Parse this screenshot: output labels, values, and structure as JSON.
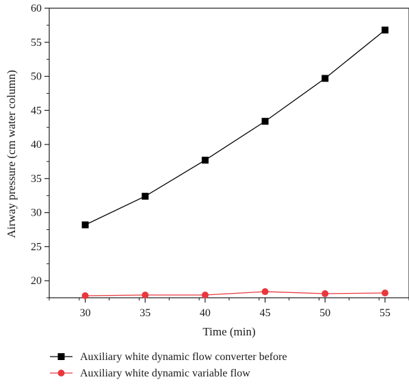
{
  "chart_data": {
    "type": "line",
    "title": "",
    "xlabel": "Time (min)",
    "ylabel": "Airway pressure (cm water column)",
    "x": [
      30,
      35,
      40,
      45,
      50,
      55
    ],
    "xlim": [
      27,
      57
    ],
    "ylim": [
      17.5,
      60
    ],
    "xticks": [
      30,
      35,
      40,
      45,
      50,
      55
    ],
    "yticks": [
      20,
      25,
      30,
      35,
      40,
      45,
      50,
      55,
      60
    ],
    "grid": false,
    "legend_position": "bottom",
    "series": [
      {
        "name": "Auxiliary white dynamic flow converter before",
        "values": [
          28.2,
          32.4,
          37.7,
          43.4,
          49.7,
          56.8
        ],
        "color": "#000000",
        "marker": "square"
      },
      {
        "name": "Auxiliary white dynamic variable flow",
        "values": [
          17.8,
          17.9,
          17.9,
          18.4,
          18.1,
          18.2
        ],
        "color": "#e8383d",
        "marker": "circle"
      }
    ]
  }
}
